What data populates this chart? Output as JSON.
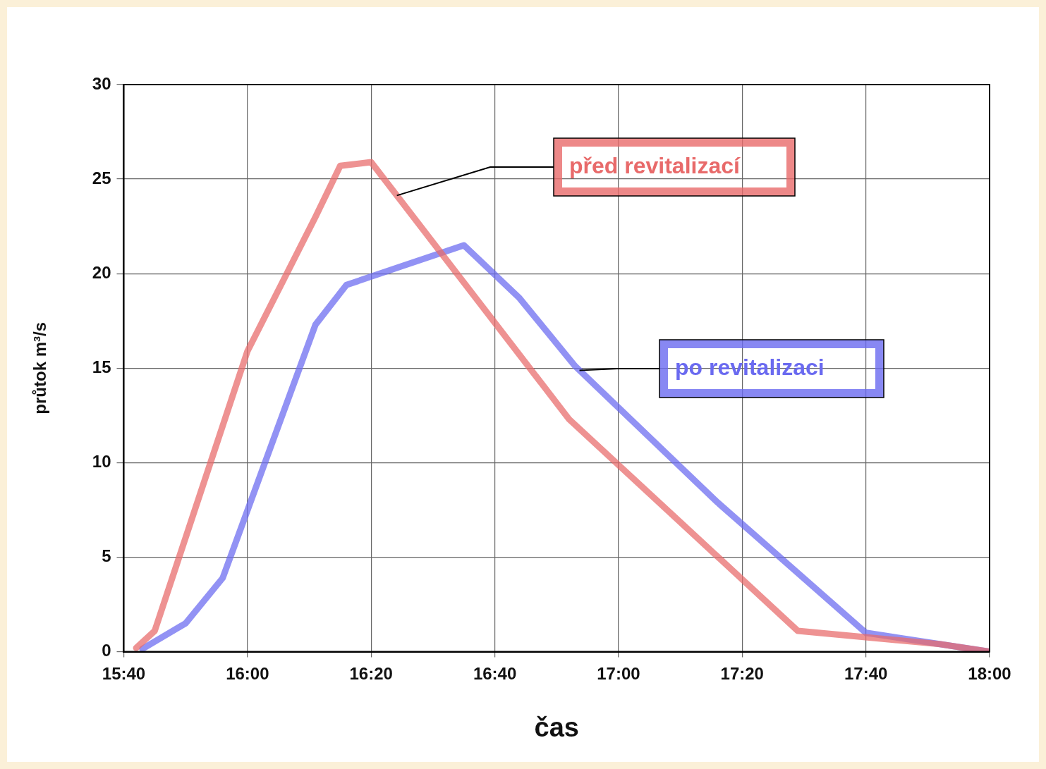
{
  "chart_data": {
    "type": "line",
    "xlabel": "čas",
    "ylabel": "průtok m³/s",
    "xlim": [
      15.6667,
      18
    ],
    "xticks": [
      {
        "value": 15.6667,
        "label": "15:40"
      },
      {
        "value": 16,
        "label": "16:00"
      },
      {
        "value": 16.3333,
        "label": "16:20"
      },
      {
        "value": 16.6667,
        "label": "16:40"
      },
      {
        "value": 17,
        "label": "17:00"
      },
      {
        "value": 17.3333,
        "label": "17:20"
      },
      {
        "value": 17.6667,
        "label": "17:40"
      },
      {
        "value": 18,
        "label": "18:00"
      }
    ],
    "ylim": [
      0,
      30
    ],
    "yticks": [
      0,
      5,
      10,
      15,
      20,
      25,
      30
    ],
    "grid": true,
    "legend": false,
    "marker": "none",
    "line_style": "solid",
    "series": [
      {
        "name": "před revitalizací",
        "color": "#e86a6a",
        "x": [
          15.7,
          15.75,
          16,
          16.1833,
          16.25,
          16.3333,
          16.8667,
          17.4833,
          17.8667,
          18
        ],
        "values": [
          0.2,
          1.1,
          15.9,
          23,
          25.7,
          25.9,
          12.3,
          1.1,
          0.4,
          0
        ]
      },
      {
        "name": "po revitalizaci",
        "color": "#6a6af0",
        "x": [
          15.7167,
          15.8333,
          15.9333,
          16.1833,
          16.2667,
          16.4167,
          16.5833,
          16.7333,
          16.8833,
          17.2667,
          17.6667,
          18
        ],
        "values": [
          0.15,
          1.5,
          3.9,
          17.3,
          19.4,
          20.4,
          21.5,
          18.7,
          15.1,
          7.9,
          1,
          0
        ]
      }
    ]
  }
}
